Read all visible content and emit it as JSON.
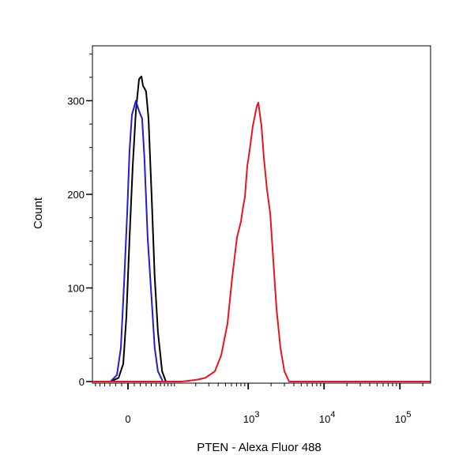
{
  "chart_data": {
    "type": "line",
    "title": "",
    "xlabel": "PTEN - Alexa Fluor 488",
    "ylabel": "Count",
    "x_scale": "biexponential",
    "xlim": [
      -68,
      250000
    ],
    "ylim": [
      0,
      359
    ],
    "grid": false,
    "legend": "none",
    "y_ticks": [
      0,
      100,
      200,
      300
    ],
    "y_tick_labels": [
      "0",
      "100",
      "200",
      "300"
    ],
    "x_ticks": [
      {
        "value": 0,
        "base": "0",
        "exp": ""
      },
      {
        "value": 1000,
        "base": "10",
        "exp": "3"
      },
      {
        "value": 10000,
        "base": "10",
        "exp": "4"
      },
      {
        "value": 100000,
        "base": "10",
        "exp": "5"
      }
    ],
    "series": [
      {
        "color": "#000000",
        "x": [
          -68,
          -29,
          -15,
          -7.5,
          -2.5,
          2.5,
          7.5,
          12.6,
          17.8,
          21.8,
          24.5,
          30,
          34.6,
          40.7,
          47,
          54,
          64,
          74
        ],
        "y": [
          0,
          0,
          4,
          19,
          70,
          154,
          230,
          289,
          323,
          326,
          316,
          310,
          281,
          197,
          112,
          53,
          11,
          0
        ]
      },
      {
        "color": "#1f1fd0",
        "x": [
          -68,
          -29,
          -17.8,
          -11.3,
          -6.2,
          -1.2,
          2.5,
          6.2,
          12.6,
          17.8,
          23,
          27,
          33,
          40.7,
          47,
          54,
          66
        ],
        "y": [
          0,
          0,
          7,
          36,
          104,
          180,
          247,
          285,
          300,
          289,
          281,
          239,
          154,
          87,
          36,
          11,
          0
        ]
      },
      {
        "color": "#e8141c",
        "x": [
          -68,
          128,
          211,
          270,
          362,
          439,
          532,
          615,
          710,
          801,
          861,
          903,
          971,
          1044,
          1149,
          1205,
          1295,
          1359,
          1496,
          1608,
          1769,
          1947,
          2144,
          2360,
          2662,
          3001,
          3465,
          250000
        ],
        "y": [
          0,
          0,
          2,
          4,
          11,
          28,
          62,
          112,
          154,
          171,
          188,
          197,
          230,
          247,
          273,
          281,
          294,
          298,
          273,
          239,
          205,
          180,
          129,
          78,
          36,
          11,
          0,
          0
        ]
      }
    ]
  }
}
